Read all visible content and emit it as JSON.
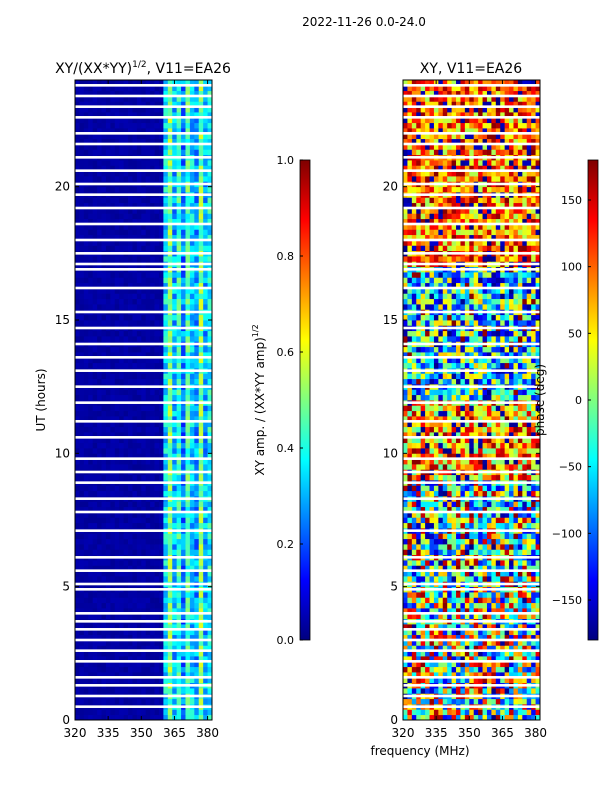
{
  "figure": {
    "suptitle": "2022-11-26 0.0-24.0",
    "xlabel": "frequency (MHz)"
  },
  "chart_data": [
    {
      "type": "heatmap",
      "title": "XY/(XX*YY)",
      "title_exponent": "1/2",
      "title_suffix": ", V11=EA26",
      "xlabel": "",
      "ylabel": "UT (hours)",
      "xlim": [
        320,
        382
      ],
      "ylim": [
        0,
        24
      ],
      "xticks": [
        320,
        335,
        350,
        365,
        380
      ],
      "yticks": [
        0,
        5,
        10,
        15,
        20
      ],
      "colorbar": {
        "label": "XY amp. / (XX*YY amp)",
        "label_exponent": "1/2",
        "range": [
          0.0,
          1.0
        ],
        "ticks": [
          "0.0",
          "0.2",
          "0.4",
          "0.6",
          "0.8",
          "1.0"
        ],
        "colormap": "jet"
      },
      "bands": [
        {
          "from": 320,
          "to": 360,
          "value": 0.02
        },
        {
          "from": 360,
          "to": 362,
          "value": 0.35
        },
        {
          "from": 362,
          "to": 364,
          "value": 0.5
        },
        {
          "from": 364,
          "to": 366,
          "value": 0.3
        },
        {
          "from": 366,
          "to": 368,
          "value": 0.42
        },
        {
          "from": 368,
          "to": 370,
          "value": 0.25
        },
        {
          "from": 370,
          "to": 372,
          "value": 0.45
        },
        {
          "from": 372,
          "to": 374,
          "value": 0.33
        },
        {
          "from": 374,
          "to": 376,
          "value": 0.28
        },
        {
          "from": 376,
          "to": 378,
          "value": 0.5
        },
        {
          "from": 378,
          "to": 380,
          "value": 0.3
        },
        {
          "from": 380,
          "to": 382,
          "value": 0.38
        }
      ],
      "flagged_hours": [
        0.5,
        0.9,
        1.3,
        1.6,
        2.2,
        2.6,
        3.0,
        3.4,
        3.7,
        4.0,
        4.9,
        5.1,
        5.6,
        6.1,
        7.1,
        7.8,
        8.3,
        8.9,
        9.3,
        9.8,
        10.6,
        11.2,
        11.9,
        12.5,
        13.1,
        13.6,
        14.1,
        14.7,
        15.3,
        16.2,
        16.9,
        17.1,
        17.5,
        18.0,
        18.6,
        19.2,
        19.7,
        20.1,
        20.6,
        21.1,
        21.6,
        22.0,
        22.6,
        23.0,
        23.4,
        23.8
      ]
    },
    {
      "type": "heatmap",
      "title": "XY, V11=EA26",
      "xlabel": "",
      "ylabel": "",
      "xlim": [
        320,
        382
      ],
      "ylim": [
        0,
        24
      ],
      "xticks": [
        320,
        335,
        350,
        365,
        380
      ],
      "yticks": [
        0,
        5,
        10,
        15,
        20
      ],
      "colorbar": {
        "label": "phase (deg)",
        "range": [
          -180,
          180
        ],
        "ticks": [
          "−150",
          "−100",
          "−50",
          "0",
          "50",
          "100",
          "150"
        ],
        "tick_values": [
          -150,
          -100,
          -50,
          0,
          50,
          100,
          150
        ],
        "colormap": "jet"
      },
      "phase_regions": [
        {
          "from_hour": 0,
          "to_hour": 5,
          "mean_phase": 20,
          "spread": 170
        },
        {
          "from_hour": 5,
          "to_hour": 9,
          "mean_phase": -70,
          "spread": 150
        },
        {
          "from_hour": 9,
          "to_hour": 12,
          "mean_phase": 90,
          "spread": 110
        },
        {
          "from_hour": 12,
          "to_hour": 17,
          "mean_phase": -60,
          "spread": 130
        },
        {
          "from_hour": 17,
          "to_hour": 24,
          "mean_phase": 110,
          "spread": 100
        }
      ],
      "flagged_hours": [
        0.5,
        0.9,
        1.3,
        1.6,
        2.2,
        2.6,
        3.0,
        3.4,
        3.7,
        4.0,
        4.9,
        5.1,
        5.6,
        6.1,
        7.1,
        7.8,
        8.3,
        8.9,
        9.3,
        9.8,
        10.6,
        11.2,
        11.9,
        12.5,
        13.1,
        13.6,
        14.1,
        14.7,
        15.3,
        16.2,
        16.9,
        17.1,
        17.5,
        18.0,
        18.6,
        19.2,
        19.7,
        20.1,
        20.6,
        21.1,
        21.6,
        22.0,
        22.6,
        23.0,
        23.4,
        23.8
      ]
    }
  ]
}
